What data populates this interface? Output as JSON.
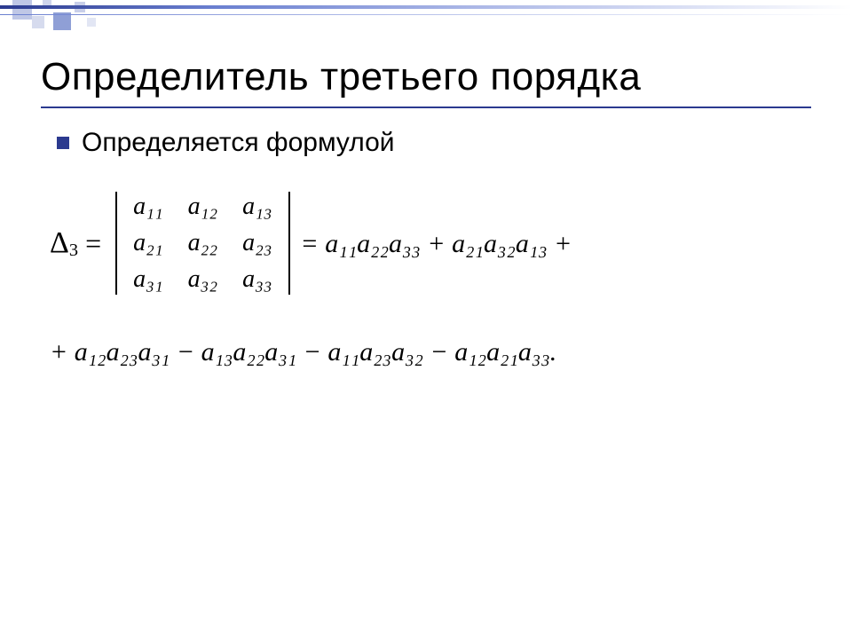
{
  "title": "Определитель третьего порядка",
  "bullet_text": "Определяется формулой",
  "accent_color": "#2b3a8f",
  "math": {
    "delta_label": "Δ",
    "delta_sub": "3",
    "matrix": {
      "rows": [
        [
          "a₁₁",
          "a₁₂",
          "a₁₃"
        ],
        [
          "a₂₁",
          "a₂₂",
          "a₂₃"
        ],
        [
          "a₃₁",
          "a₃₂",
          "a₃₃"
        ]
      ]
    },
    "rhs_line1": "= a₁₁a₂₂a₃₃ + a₂₁a₃₂a₁₃ +",
    "rhs_line2": "+ a₁₂a₂₃a₃₁ − a₁₃a₂₂a₃₁ − a₁₁a₂₃a₃₂ − a₁₂a₂₁a₃₃."
  }
}
